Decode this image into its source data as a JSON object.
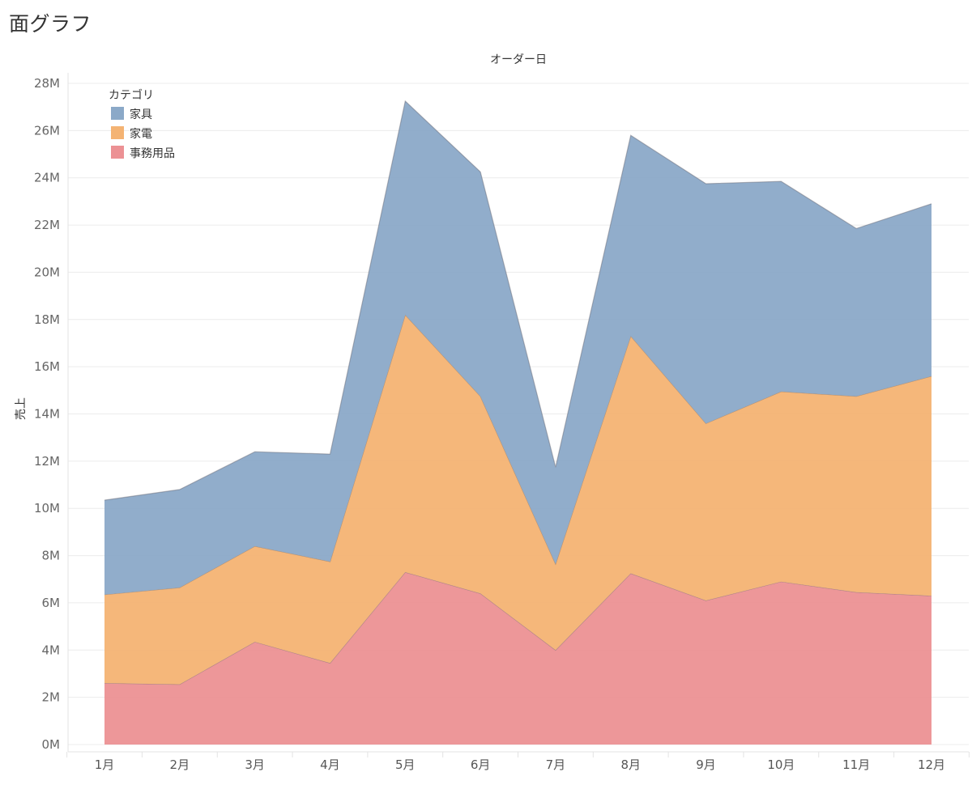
{
  "page": {
    "title": "面グラフ"
  },
  "chart_data": {
    "type": "area",
    "stacked": true,
    "title": "",
    "column_header": "オーダー日",
    "xlabel": "",
    "ylabel": "売上",
    "categories": [
      "1月",
      "2月",
      "3月",
      "4月",
      "5月",
      "6月",
      "7月",
      "8月",
      "9月",
      "10月",
      "11月",
      "12月"
    ],
    "ylim": [
      0,
      28
    ],
    "y_ticks": [
      0,
      2,
      4,
      6,
      8,
      10,
      12,
      14,
      16,
      18,
      20,
      22,
      24,
      26,
      28
    ],
    "y_tick_labels": [
      "0M",
      "2M",
      "4M",
      "6M",
      "8M",
      "10M",
      "12M",
      "14M",
      "16M",
      "18M",
      "20M",
      "22M",
      "24M",
      "26M",
      "28M"
    ],
    "grid": true,
    "legend": {
      "title": "カテゴリ",
      "placement": "top-left",
      "items": [
        {
          "name": "家具",
          "color": "#8ba9c8"
        },
        {
          "name": "家電",
          "color": "#f4b373"
        },
        {
          "name": "事務用品",
          "color": "#ec9194"
        }
      ]
    },
    "series": [
      {
        "name": "事務用品",
        "color": "#ec9194",
        "values": [
          2.6,
          2.55,
          4.35,
          3.45,
          7.3,
          6.4,
          4.0,
          7.25,
          6.1,
          6.9,
          6.45,
          6.3
        ]
      },
      {
        "name": "家電",
        "color": "#f4b373",
        "values": [
          3.75,
          4.1,
          4.05,
          4.3,
          10.9,
          8.35,
          3.65,
          10.05,
          7.5,
          8.05,
          8.3,
          9.3
        ]
      },
      {
        "name": "家具",
        "color": "#8ba9c8",
        "values": [
          4.0,
          4.15,
          4.0,
          4.55,
          9.05,
          9.5,
          4.1,
          8.5,
          10.15,
          8.9,
          7.1,
          7.3
        ]
      }
    ]
  }
}
